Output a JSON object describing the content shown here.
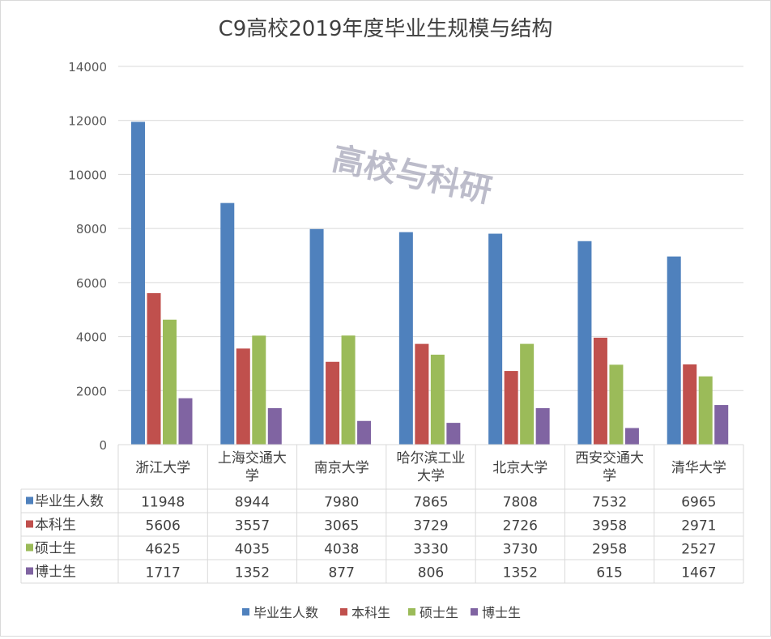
{
  "chart_data": {
    "type": "bar",
    "title": "C9高校2019年度毕业生规模与结构",
    "watermark": "高校与科研",
    "categories": [
      [
        "浙江大学"
      ],
      [
        "上海交通大",
        "学"
      ],
      [
        "南京大学"
      ],
      [
        "哈尔滨工业",
        "大学"
      ],
      [
        "北京大学"
      ],
      [
        "西安交通大",
        "学"
      ],
      [
        "清华大学"
      ]
    ],
    "series": [
      {
        "name": "毕业生人数",
        "color": "#4f81bd",
        "values": [
          11948,
          8944,
          7980,
          7865,
          7808,
          7532,
          6965
        ]
      },
      {
        "name": "本科生",
        "color": "#c0504d",
        "values": [
          5606,
          3557,
          3065,
          3729,
          2726,
          3958,
          2971
        ]
      },
      {
        "name": "硕士生",
        "color": "#9bbb59",
        "values": [
          4625,
          4035,
          4038,
          3330,
          3730,
          2958,
          2527
        ]
      },
      {
        "name": "博士生",
        "color": "#8064a2",
        "values": [
          1717,
          1352,
          877,
          806,
          1352,
          615,
          1467
        ]
      }
    ],
    "ylim": [
      0,
      14000
    ],
    "yticks": [
      "0",
      "2000",
      "4000",
      "6000",
      "8000",
      "10000",
      "12000",
      "14000"
    ],
    "grid": true,
    "data_table": true,
    "legend": "bottom"
  }
}
